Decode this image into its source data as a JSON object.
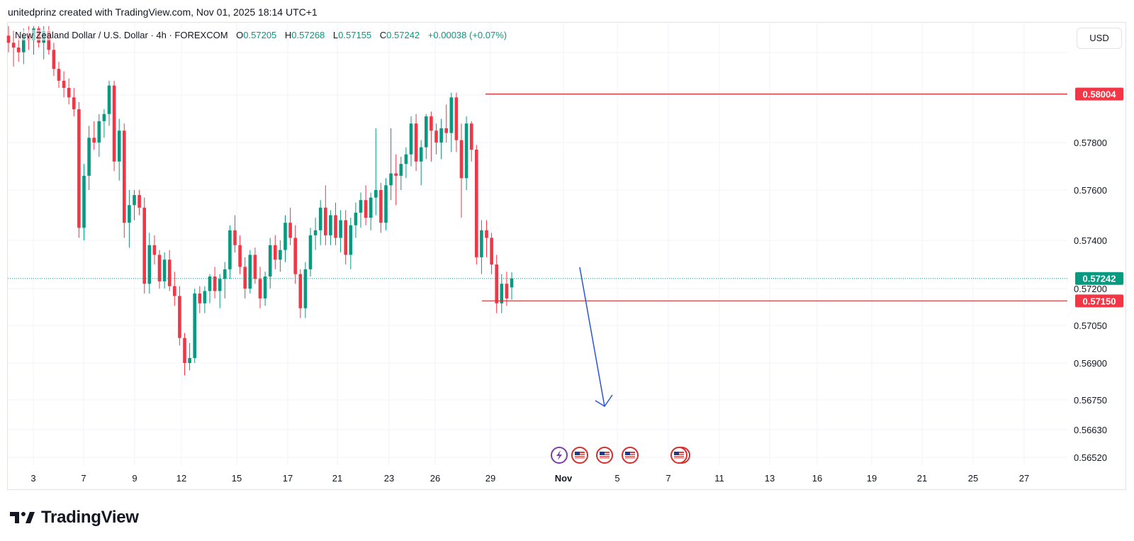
{
  "header": {
    "byline": "unitedprinz created with TradingView.com, Nov 01, 2025 18:14 UTC+1"
  },
  "legend": {
    "symbol": "New Zealand Dollar / U.S. Dollar · 4h · FOREXCOM",
    "open_label": "O",
    "open": "0.57205",
    "high_label": "H",
    "high": "0.57268",
    "low_label": "L",
    "low": "0.57155",
    "close_label": "C",
    "close": "0.57242",
    "change": "+0.00038 (+0.07%)"
  },
  "currency_button": {
    "label": "USD"
  },
  "footer": {
    "brand": "TradingView"
  },
  "colors": {
    "up": "#089981",
    "down": "#f23645",
    "grid": "#f0f3fa",
    "level_line": "#d32f2f",
    "arrow": "#2955d6",
    "current": "#089981"
  },
  "chart_data": {
    "type": "candlestick",
    "title": "New Zealand Dollar / U.S. Dollar · 4h · FOREXCOM",
    "interval": "4h",
    "x_ticks": [
      "3",
      "7",
      "9",
      "12",
      "15",
      "17",
      "21",
      "23",
      "26",
      "29",
      "Nov",
      "5",
      "7",
      "11",
      "13",
      "16",
      "19",
      "21",
      "25",
      "27"
    ],
    "price_ticks": [
      "0.57800",
      "0.57600",
      "0.57400",
      "0.57200",
      "0.57050",
      "0.56900",
      "0.56750",
      "0.56630",
      "0.56520"
    ],
    "y_range": [
      0.5645,
      0.5827
    ],
    "candles": [
      [
        0.5825,
        0.5829,
        0.5818,
        0.5822
      ],
      [
        0.5822,
        0.5827,
        0.5812,
        0.582
      ],
      [
        0.582,
        0.5826,
        0.5814,
        0.5818
      ],
      [
        0.5818,
        0.5828,
        0.5813,
        0.5825
      ],
      [
        0.5825,
        0.5829,
        0.5819,
        0.5823
      ],
      [
        0.5823,
        0.5829,
        0.5817,
        0.5828
      ],
      [
        0.5828,
        0.5829,
        0.582,
        0.5822
      ],
      [
        0.5822,
        0.5829,
        0.5815,
        0.5827
      ],
      [
        0.5827,
        0.5829,
        0.5817,
        0.5819
      ],
      [
        0.5819,
        0.5822,
        0.5808,
        0.5811
      ],
      [
        0.5811,
        0.5814,
        0.5803,
        0.5806
      ],
      [
        0.5806,
        0.581,
        0.5799,
        0.5803
      ],
      [
        0.5803,
        0.5807,
        0.5796,
        0.5799
      ],
      [
        0.5799,
        0.5803,
        0.5791,
        0.5794
      ],
      [
        0.5794,
        0.5797,
        0.5741,
        0.5745
      ],
      [
        0.5745,
        0.5771,
        0.574,
        0.5766
      ],
      [
        0.5766,
        0.5787,
        0.576,
        0.5782
      ],
      [
        0.5782,
        0.5789,
        0.5777,
        0.578
      ],
      [
        0.578,
        0.5792,
        0.5774,
        0.5789
      ],
      [
        0.5789,
        0.5794,
        0.5782,
        0.5792
      ],
      [
        0.5792,
        0.5806,
        0.5787,
        0.5804
      ],
      [
        0.5804,
        0.5806,
        0.5768,
        0.5772
      ],
      [
        0.5772,
        0.579,
        0.5764,
        0.5785
      ],
      [
        0.5785,
        0.5788,
        0.5741,
        0.5747
      ],
      [
        0.5747,
        0.576,
        0.5737,
        0.5754
      ],
      [
        0.5754,
        0.576,
        0.5748,
        0.5758
      ],
      [
        0.5758,
        0.576,
        0.575,
        0.5753
      ],
      [
        0.5753,
        0.5757,
        0.5718,
        0.5722
      ],
      [
        0.5722,
        0.5743,
        0.5718,
        0.5738
      ],
      [
        0.5738,
        0.5742,
        0.573,
        0.5734
      ],
      [
        0.5734,
        0.5736,
        0.572,
        0.5723
      ],
      [
        0.5723,
        0.5735,
        0.572,
        0.5732
      ],
      [
        0.5732,
        0.5736,
        0.5719,
        0.5721
      ],
      [
        0.5721,
        0.5727,
        0.5713,
        0.5717
      ],
      [
        0.5717,
        0.5721,
        0.5697,
        0.57
      ],
      [
        0.57,
        0.5702,
        0.5685,
        0.569
      ],
      [
        0.569,
        0.5698,
        0.5687,
        0.5692
      ],
      [
        0.5692,
        0.572,
        0.569,
        0.5718
      ],
      [
        0.5718,
        0.5721,
        0.571,
        0.5714
      ],
      [
        0.5714,
        0.5721,
        0.571,
        0.5719
      ],
      [
        0.5719,
        0.5726,
        0.5714,
        0.5725
      ],
      [
        0.5725,
        0.5729,
        0.5716,
        0.5719
      ],
      [
        0.5719,
        0.5726,
        0.5712,
        0.5724
      ],
      [
        0.5724,
        0.5731,
        0.5716,
        0.5728
      ],
      [
        0.5728,
        0.5746,
        0.5724,
        0.5744
      ],
      [
        0.5744,
        0.575,
        0.5735,
        0.5738
      ],
      [
        0.5738,
        0.5742,
        0.5726,
        0.5729
      ],
      [
        0.5729,
        0.5733,
        0.5716,
        0.572
      ],
      [
        0.572,
        0.5736,
        0.5718,
        0.5734
      ],
      [
        0.5734,
        0.5737,
        0.5722,
        0.5724
      ],
      [
        0.5724,
        0.5729,
        0.5712,
        0.5716
      ],
      [
        0.5716,
        0.5727,
        0.5713,
        0.5725
      ],
      [
        0.5725,
        0.5741,
        0.572,
        0.5738
      ],
      [
        0.5738,
        0.5742,
        0.5728,
        0.5732
      ],
      [
        0.5732,
        0.574,
        0.5727,
        0.5736
      ],
      [
        0.5736,
        0.575,
        0.5731,
        0.5747
      ],
      [
        0.5747,
        0.5753,
        0.5738,
        0.5741
      ],
      [
        0.5741,
        0.5746,
        0.5722,
        0.5726
      ],
      [
        0.5726,
        0.5728,
        0.5708,
        0.5712
      ],
      [
        0.5712,
        0.5731,
        0.5708,
        0.5728
      ],
      [
        0.5728,
        0.5745,
        0.5725,
        0.5742
      ],
      [
        0.5742,
        0.5749,
        0.5736,
        0.5744
      ],
      [
        0.5744,
        0.5756,
        0.5738,
        0.5753
      ],
      [
        0.5753,
        0.5762,
        0.5738,
        0.5742
      ],
      [
        0.5742,
        0.5752,
        0.5738,
        0.575
      ],
      [
        0.575,
        0.5755,
        0.5738,
        0.5741
      ],
      [
        0.5741,
        0.5752,
        0.5735,
        0.5748
      ],
      [
        0.5748,
        0.5752,
        0.573,
        0.5734
      ],
      [
        0.5734,
        0.5749,
        0.5728,
        0.5746
      ],
      [
        0.5746,
        0.5755,
        0.5741,
        0.5751
      ],
      [
        0.5751,
        0.5759,
        0.5745,
        0.5756
      ],
      [
        0.5756,
        0.5762,
        0.5746,
        0.5749
      ],
      [
        0.5749,
        0.5759,
        0.5744,
        0.5757
      ],
      [
        0.5757,
        0.5786,
        0.575,
        0.576
      ],
      [
        0.576,
        0.5763,
        0.5743,
        0.5747
      ],
      [
        0.5747,
        0.5765,
        0.5744,
        0.5762
      ],
      [
        0.5762,
        0.5786,
        0.5756,
        0.5767
      ],
      [
        0.5767,
        0.5775,
        0.5754,
        0.5766
      ],
      [
        0.5766,
        0.5774,
        0.576,
        0.5771
      ],
      [
        0.5771,
        0.5778,
        0.5765,
        0.5775
      ],
      [
        0.5775,
        0.5791,
        0.577,
        0.5788
      ],
      [
        0.5788,
        0.5792,
        0.5768,
        0.5772
      ],
      [
        0.5772,
        0.5781,
        0.5762,
        0.5778
      ],
      [
        0.5778,
        0.5792,
        0.5773,
        0.5791
      ],
      [
        0.5791,
        0.5793,
        0.5772,
        0.5785
      ],
      [
        0.5785,
        0.5788,
        0.5775,
        0.578
      ],
      [
        0.578,
        0.579,
        0.5773,
        0.5786
      ],
      [
        0.5786,
        0.5796,
        0.578,
        0.5784
      ],
      [
        0.5784,
        0.5801,
        0.5776,
        0.5799
      ],
      [
        0.5799,
        0.5801,
        0.5776,
        0.5781
      ],
      [
        0.5781,
        0.5788,
        0.5749,
        0.5765
      ],
      [
        0.5765,
        0.5791,
        0.576,
        0.5788
      ],
      [
        0.5788,
        0.5789,
        0.5772,
        0.5777
      ],
      [
        0.5777,
        0.5779,
        0.573,
        0.5733
      ],
      [
        0.5733,
        0.5748,
        0.5726,
        0.5744
      ],
      [
        0.5744,
        0.5748,
        0.5733,
        0.5741
      ],
      [
        0.5741,
        0.5743,
        0.5726,
        0.573
      ],
      [
        0.573,
        0.5734,
        0.571,
        0.5714
      ],
      [
        0.5714,
        0.5726,
        0.571,
        0.5722
      ],
      [
        0.5722,
        0.5727,
        0.5713,
        0.5716
      ],
      [
        0.57205,
        0.57268,
        0.57155,
        0.57242
      ]
    ],
    "annotations": [
      {
        "type": "horizontal_level",
        "price": 0.58004,
        "label": "0.58004"
      },
      {
        "type": "horizontal_level",
        "price": 0.5715,
        "label": "0.57150"
      },
      {
        "type": "last_price",
        "price": 0.57242,
        "label": "0.57242"
      },
      {
        "type": "arrow",
        "direction": "down",
        "from_price": 0.5728,
        "to_price": 0.5673
      }
    ],
    "event_markers": [
      "lightning",
      "us-flag",
      "us-flag",
      "us-flag",
      "us-flag-double"
    ]
  }
}
